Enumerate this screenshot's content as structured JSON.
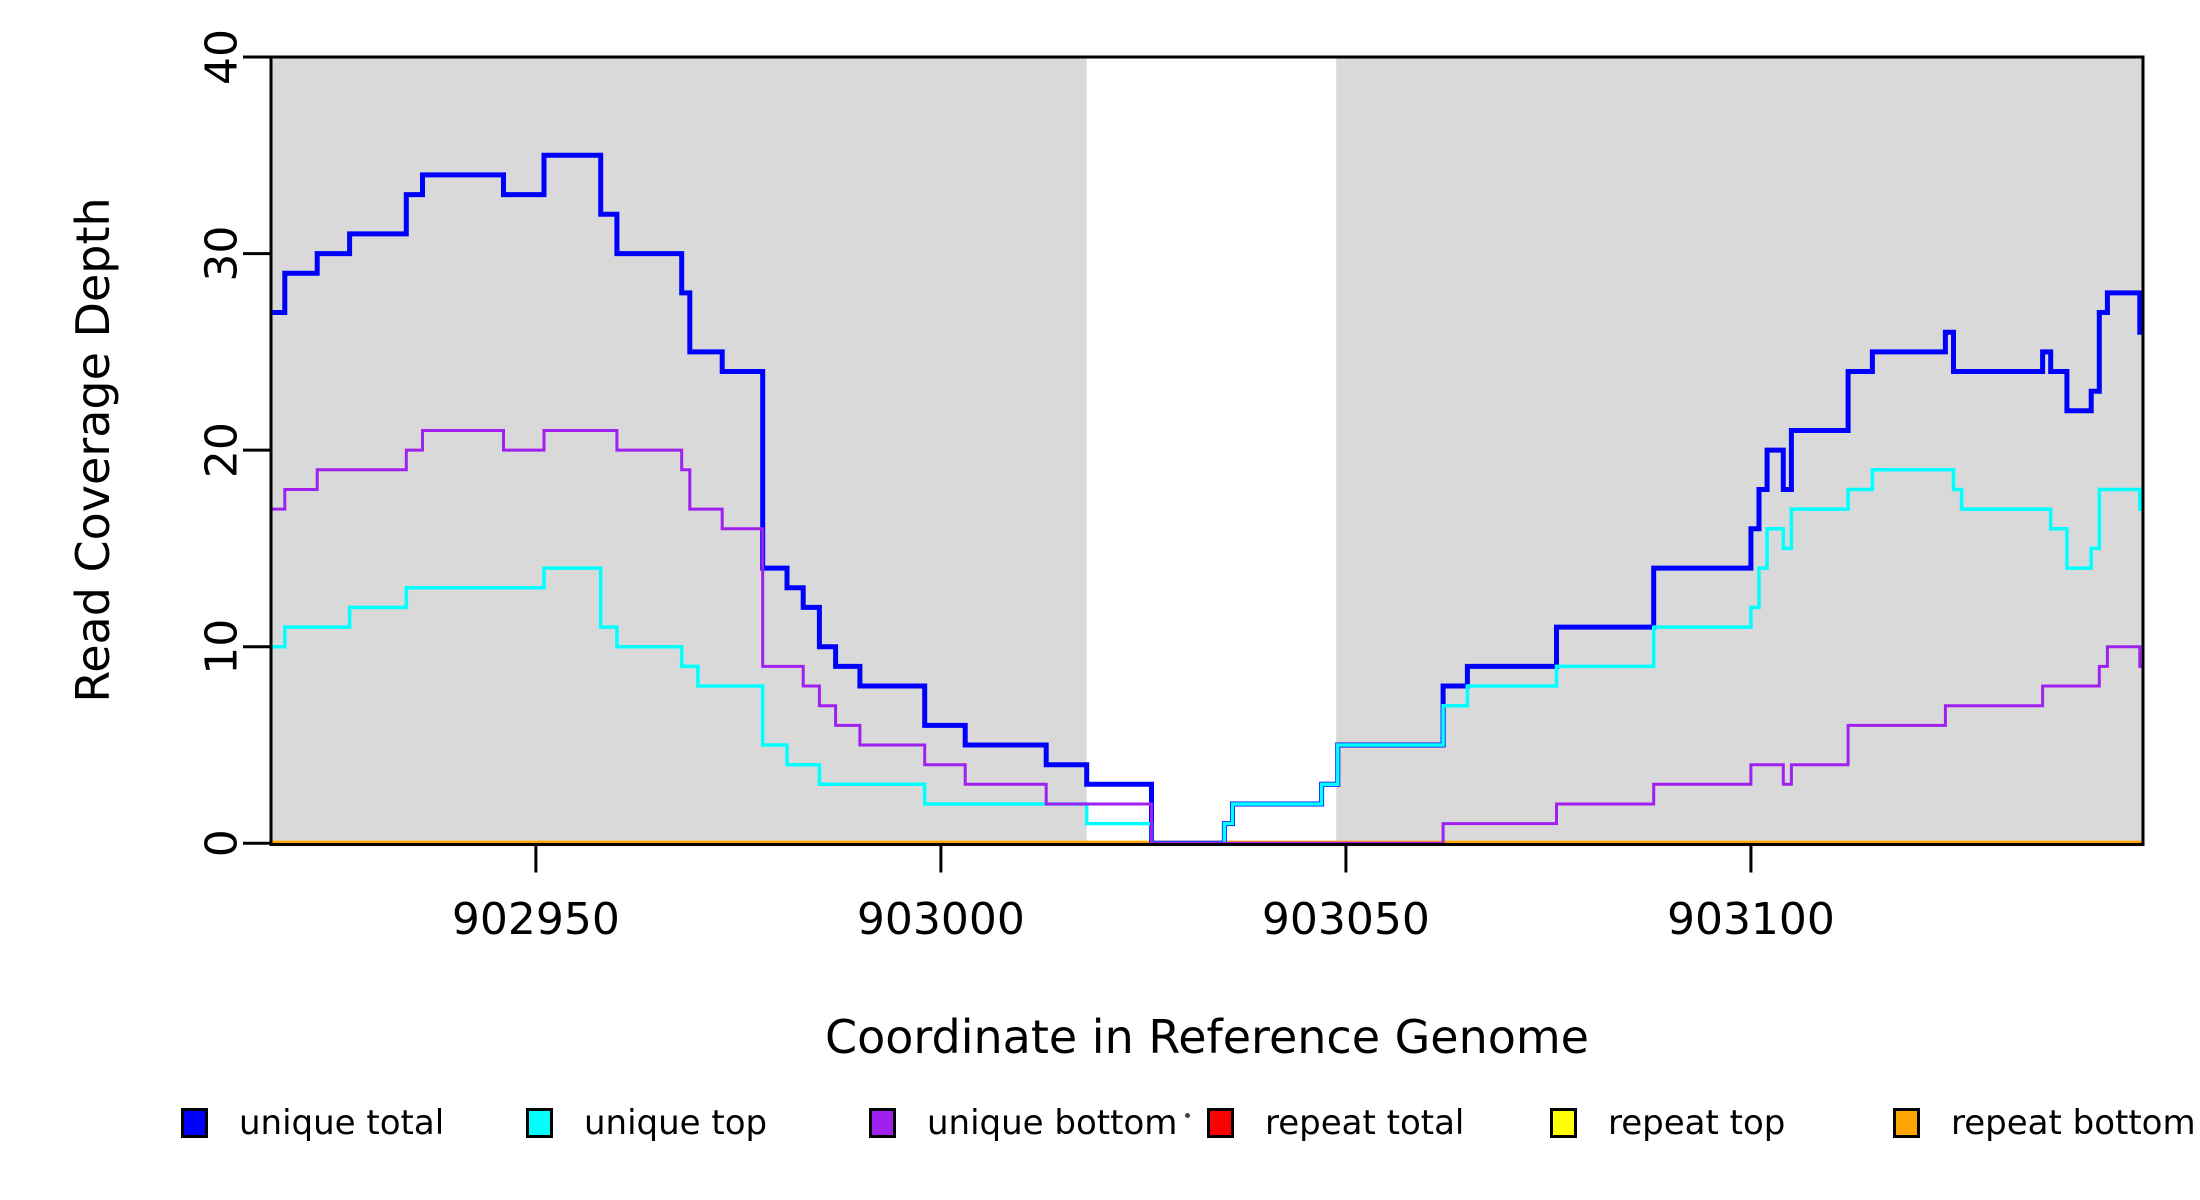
{
  "x_axis": {
    "label": "Coordinate in Reference Genome",
    "ticks": [
      902950,
      903000,
      903050,
      903100
    ]
  },
  "y_axis": {
    "label": "Read Coverage Depth",
    "ticks": [
      0,
      10,
      20,
      30,
      40
    ]
  },
  "legend": {
    "items": [
      {
        "label": "unique total",
        "color": "#0000FF"
      },
      {
        "label": "unique top",
        "color": "#00FFFF"
      },
      {
        "label": "unique bottom",
        "color": "#A020F0"
      },
      {
        "label": "repeat total",
        "color": "#FF0000"
      },
      {
        "label": "repeat top",
        "color": "#FFFF00"
      },
      {
        "label": "repeat bottom",
        "color": "#FFA500"
      }
    ]
  },
  "chart_data": {
    "type": "step-line",
    "title": "",
    "xlabel": "Coordinate in Reference Genome",
    "ylabel": "Read Coverage Depth",
    "xlim": [
      902917.3,
      903148.4
    ],
    "ylim": [
      0,
      40
    ],
    "x_ticks": [
      902950,
      903000,
      903050,
      903100
    ],
    "y_ticks": [
      0,
      10,
      20,
      30,
      40
    ],
    "grid": false,
    "legend_position": "bottom",
    "plot_background": "#FFFFFF",
    "band_color": "#D9D9D9",
    "shaded_regions": [
      [
        902917.3,
        903018
      ],
      [
        903048.8,
        903148.4
      ]
    ],
    "series": [
      {
        "name": "unique total",
        "color": "#0000FF",
        "steps": [
          [
            902917.3,
            27
          ],
          [
            902919,
            29
          ],
          [
            902923,
            30
          ],
          [
            902927,
            31
          ],
          [
            902934,
            33
          ],
          [
            902936,
            34
          ],
          [
            902946,
            33
          ],
          [
            902951,
            35
          ],
          [
            902958,
            32
          ],
          [
            902960,
            30
          ],
          [
            902968,
            28
          ],
          [
            902969,
            25
          ],
          [
            902973,
            24
          ],
          [
            902978,
            14
          ],
          [
            902981,
            13
          ],
          [
            902983,
            12
          ],
          [
            902985,
            10
          ],
          [
            902987,
            9
          ],
          [
            902990,
            8
          ],
          [
            902998,
            6
          ],
          [
            903003,
            5
          ],
          [
            903013,
            4
          ],
          [
            903018,
            3
          ],
          [
            903026,
            0
          ],
          [
            903035,
            1
          ],
          [
            903036,
            2
          ],
          [
            903047,
            3
          ],
          [
            903049,
            5
          ],
          [
            903062,
            8
          ],
          [
            903065,
            9
          ],
          [
            903076,
            11
          ],
          [
            903088,
            14
          ],
          [
            903100,
            16
          ],
          [
            903101,
            18
          ],
          [
            903102,
            20
          ],
          [
            903104,
            18
          ],
          [
            903105,
            21
          ],
          [
            903112,
            24
          ],
          [
            903115,
            25
          ],
          [
            903124,
            26
          ],
          [
            903125,
            24
          ],
          [
            903136,
            25
          ],
          [
            903137,
            24
          ],
          [
            903139,
            22
          ],
          [
            903142,
            23
          ],
          [
            903143,
            27
          ],
          [
            903144,
            28
          ],
          [
            903148,
            26
          ]
        ]
      },
      {
        "name": "unique top",
        "color": "#00FFFF",
        "steps": [
          [
            902917.3,
            10
          ],
          [
            902919,
            11
          ],
          [
            902927,
            12
          ],
          [
            902934,
            13
          ],
          [
            902951,
            14
          ],
          [
            902958,
            11
          ],
          [
            902960,
            10
          ],
          [
            902968,
            9
          ],
          [
            902970,
            8
          ],
          [
            902978,
            5
          ],
          [
            902981,
            4
          ],
          [
            902985,
            3
          ],
          [
            902998,
            2
          ],
          [
            903018,
            1
          ],
          [
            903026,
            0
          ],
          [
            903035,
            1
          ],
          [
            903036,
            2
          ],
          [
            903047,
            3
          ],
          [
            903049,
            5
          ],
          [
            903062,
            7
          ],
          [
            903065,
            8
          ],
          [
            903076,
            9
          ],
          [
            903088,
            11
          ],
          [
            903100,
            12
          ],
          [
            903101,
            14
          ],
          [
            903102,
            16
          ],
          [
            903104,
            15
          ],
          [
            903105,
            17
          ],
          [
            903112,
            18
          ],
          [
            903115,
            19
          ],
          [
            903125,
            18
          ],
          [
            903126,
            17
          ],
          [
            903137,
            16
          ],
          [
            903139,
            14
          ],
          [
            903142,
            15
          ],
          [
            903143,
            18
          ],
          [
            903148,
            17
          ]
        ]
      },
      {
        "name": "unique bottom",
        "color": "#A020F0",
        "steps": [
          [
            902917.3,
            17
          ],
          [
            902919,
            18
          ],
          [
            902923,
            19
          ],
          [
            902934,
            20
          ],
          [
            902936,
            21
          ],
          [
            902946,
            20
          ],
          [
            902951,
            21
          ],
          [
            902960,
            20
          ],
          [
            902968,
            19
          ],
          [
            902969,
            17
          ],
          [
            902973,
            16
          ],
          [
            902978,
            9
          ],
          [
            902983,
            8
          ],
          [
            902985,
            7
          ],
          [
            902987,
            6
          ],
          [
            902990,
            5
          ],
          [
            902998,
            4
          ],
          [
            903003,
            3
          ],
          [
            903013,
            2
          ],
          [
            903026,
            0
          ],
          [
            903062,
            1
          ],
          [
            903076,
            2
          ],
          [
            903088,
            3
          ],
          [
            903100,
            4
          ],
          [
            903104,
            3
          ],
          [
            903105,
            4
          ],
          [
            903112,
            6
          ],
          [
            903124,
            7
          ],
          [
            903136,
            8
          ],
          [
            903143,
            9
          ],
          [
            903144,
            10
          ],
          [
            903148,
            9
          ]
        ]
      },
      {
        "name": "repeat total",
        "color": "#FF0000",
        "steps": [
          [
            902917.3,
            0
          ]
        ]
      },
      {
        "name": "repeat top",
        "color": "#FFFF00",
        "steps": [
          [
            902917.3,
            0
          ]
        ]
      },
      {
        "name": "repeat bottom",
        "color": "#FFA500",
        "steps": [
          [
            902917.3,
            0
          ]
        ]
      }
    ]
  }
}
